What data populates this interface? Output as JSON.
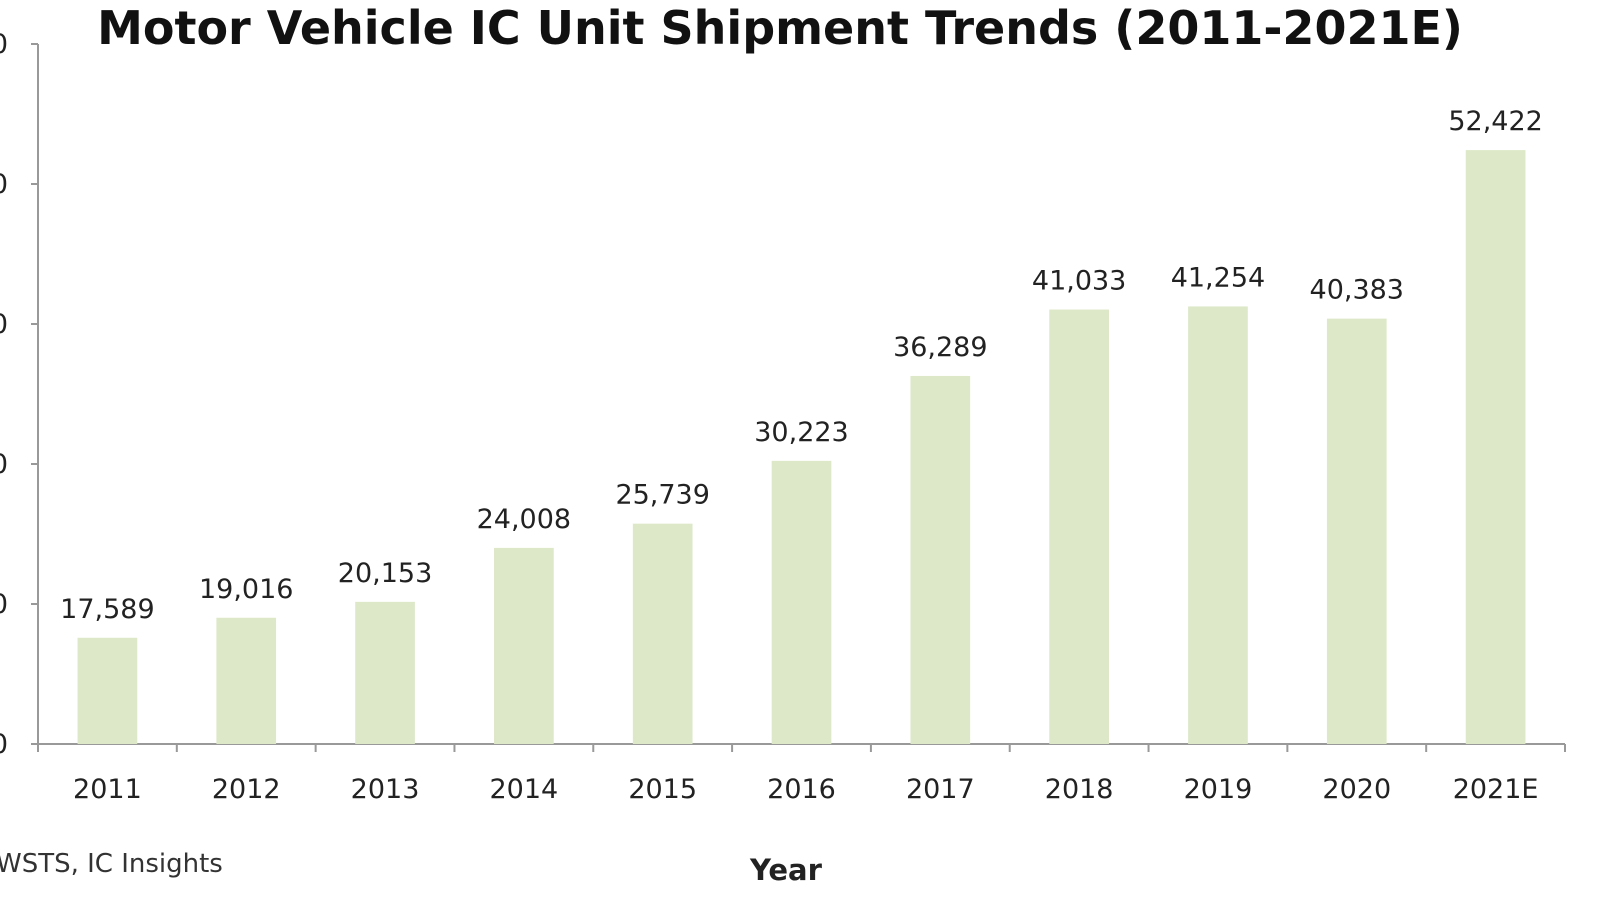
{
  "chart_data": {
    "type": "bar",
    "title": "Motor Vehicle IC Unit Shipment Trends (2011-2021E)",
    "xlabel": "Year",
    "ylabel": "",
    "categories": [
      "2011",
      "2012",
      "2013",
      "2014",
      "2015",
      "2016",
      "2017",
      "2018",
      "2019",
      "2020",
      "2021E"
    ],
    "values": [
      17589,
      19016,
      20153,
      24008,
      25739,
      30223,
      36289,
      41033,
      41254,
      40383,
      52422
    ],
    "value_labels": [
      "17,589",
      "19,016",
      "20,153",
      "24,008",
      "25,739",
      "30,223",
      "36,289",
      "41,033",
      "41,254",
      "40,383",
      "52,422"
    ],
    "ylim": [
      10000,
      60000
    ],
    "yticks": [
      10000,
      20000,
      30000,
      40000,
      50000,
      60000
    ],
    "ytick_labels": [
      "0",
      "0",
      "0",
      "0",
      "0",
      "0"
    ],
    "grid": false,
    "legend": "none",
    "bar_color": "#dde8c8",
    "source": "WSTS,  IC Insights"
  }
}
